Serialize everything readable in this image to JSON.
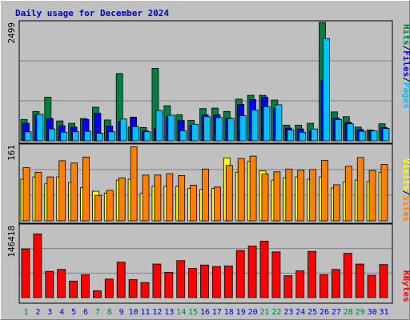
{
  "title": "Daily usage for December 2024",
  "colors": {
    "background": "#c0c0c0",
    "plot_background": "#c0c0c0",
    "grid": "#808080",
    "title": "#0000c0",
    "hits": "#008040",
    "files": "#0000ff",
    "pages": "#00c0ff",
    "visits": "#ffff00",
    "sites": "#ff8000",
    "kbytes": "#ff0000",
    "weekend_label": "#008040",
    "weekday_label": "#0000c0"
  },
  "labels": {
    "top_ymax": "2499",
    "mid_ymax": "161",
    "bottom_ymax": "146418",
    "pages": "Pages",
    "files": "Files",
    "hits": "Hits",
    "sites": "Sites",
    "visits": "Visits",
    "kbytes": "KBytes",
    "sep": "/"
  },
  "chart_data": [
    {
      "type": "bar",
      "title": "Daily usage for December 2024",
      "categories": [
        "1",
        "2",
        "3",
        "4",
        "5",
        "6",
        "7",
        "8",
        "9",
        "10",
        "11",
        "12",
        "13",
        "14",
        "15",
        "16",
        "17",
        "18",
        "19",
        "20",
        "21",
        "22",
        "23",
        "24",
        "25",
        "26",
        "27",
        "28",
        "29",
        "30",
        "31"
      ],
      "weekend_days": [
        1,
        7,
        8,
        14,
        15,
        21,
        22,
        28,
        29
      ],
      "ylim": [
        0,
        2499
      ],
      "series": [
        {
          "name": "Hits",
          "values": [
            450,
            620,
            920,
            420,
            370,
            470,
            710,
            440,
            1420,
            290,
            280,
            1530,
            740,
            550,
            430,
            680,
            690,
            620,
            880,
            960,
            960,
            860,
            330,
            330,
            370,
            2499,
            610,
            510,
            290,
            230,
            360
          ]
        },
        {
          "name": "Files",
          "values": [
            370,
            540,
            470,
            320,
            290,
            450,
            580,
            310,
            410,
            500,
            210,
            260,
            510,
            430,
            320,
            550,
            550,
            480,
            770,
            870,
            920,
            680,
            270,
            250,
            210,
            1270,
            480,
            390,
            240,
            210,
            280
          ]
        },
        {
          "name": "Pages",
          "values": [
            190,
            560,
            250,
            180,
            190,
            200,
            160,
            190,
            460,
            300,
            190,
            640,
            540,
            210,
            350,
            510,
            490,
            470,
            530,
            650,
            720,
            760,
            230,
            180,
            250,
            2160,
            450,
            360,
            200,
            210,
            260
          ]
        }
      ]
    },
    {
      "type": "bar",
      "categories": [
        "1",
        "2",
        "3",
        "4",
        "5",
        "6",
        "7",
        "8",
        "9",
        "10",
        "11",
        "12",
        "13",
        "14",
        "15",
        "16",
        "17",
        "18",
        "19",
        "20",
        "21",
        "22",
        "23",
        "24",
        "25",
        "26",
        "27",
        "28",
        "29",
        "30",
        "31"
      ],
      "ylim": [
        0,
        161
      ],
      "series": [
        {
          "name": "Visits",
          "values": [
            90,
            95,
            80,
            95,
            83,
            72,
            64,
            60,
            88,
            90,
            60,
            75,
            75,
            75,
            70,
            68,
            70,
            136,
            105,
            129,
            108,
            88,
            93,
            95,
            90,
            95,
            71,
            84,
            88,
            85,
            105
          ]
        },
        {
          "name": "Sites",
          "values": [
            115,
            105,
            95,
            130,
            125,
            138,
            55,
            66,
            93,
            160,
            99,
            99,
            102,
            98,
            77,
            112,
            73,
            120,
            135,
            140,
            101,
            106,
            112,
            110,
            111,
            131,
            78,
            118,
            137,
            109,
            122
          ]
        }
      ]
    },
    {
      "type": "bar",
      "categories": [
        "1",
        "2",
        "3",
        "4",
        "5",
        "6",
        "7",
        "8",
        "9",
        "10",
        "11",
        "12",
        "13",
        "14",
        "15",
        "16",
        "17",
        "18",
        "19",
        "20",
        "21",
        "22",
        "23",
        "24",
        "25",
        "26",
        "27",
        "28",
        "29",
        "30",
        "31"
      ],
      "ylim": [
        0,
        146418
      ],
      "series": [
        {
          "name": "KBytes",
          "values": [
            100000,
            131000,
            54000,
            58000,
            34000,
            47000,
            14000,
            38000,
            73000,
            37000,
            31000,
            69000,
            52000,
            76000,
            60000,
            67000,
            64000,
            65000,
            97000,
            106000,
            116000,
            94000,
            45000,
            55000,
            95000,
            47000,
            58000,
            91000,
            69000,
            46000,
            68000
          ]
        }
      ]
    }
  ]
}
